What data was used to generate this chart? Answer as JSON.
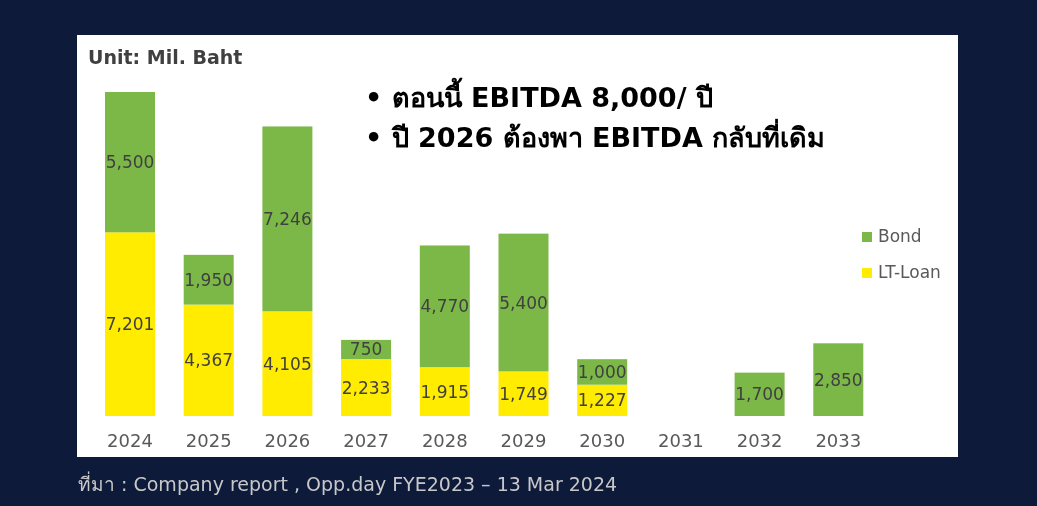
{
  "chart_data": {
    "type": "bar",
    "stacked": true,
    "subtitle": "Unit: Mil. Baht",
    "categories": [
      "2024",
      "2025",
      "2026",
      "2027",
      "2028",
      "2029",
      "2030",
      "2031",
      "2032",
      "2033"
    ],
    "series": [
      {
        "name": "LT-Loan",
        "color": "#ffec00",
        "values": [
          7201,
          4367,
          4105,
          2233,
          1915,
          1749,
          1227,
          null,
          null,
          null
        ],
        "value_labels": [
          "7,201",
          "4,367",
          "4,105",
          "2,233",
          "1,915",
          "1,749",
          "1,227",
          null,
          null,
          null
        ]
      },
      {
        "name": "Bond",
        "color": "#7cb848",
        "values": [
          5500,
          1950,
          7246,
          750,
          4770,
          5400,
          1000,
          null,
          1700,
          2850
        ],
        "value_labels": [
          "5,500",
          "1,950",
          "7,246",
          "750",
          "4,770",
          "5,400",
          "1,000",
          null,
          "1,700",
          "2,850"
        ]
      }
    ],
    "legend": "right",
    "annotations": [
      "• ตอนนี้ EBITDA 8,000/ ปี",
      "• ปี 2026 ต้องพา EBITDA กลับที่เดิม",
      "ที่มา : Company report , Opp.day FYE2023 – 13 Mar 2024"
    ]
  }
}
